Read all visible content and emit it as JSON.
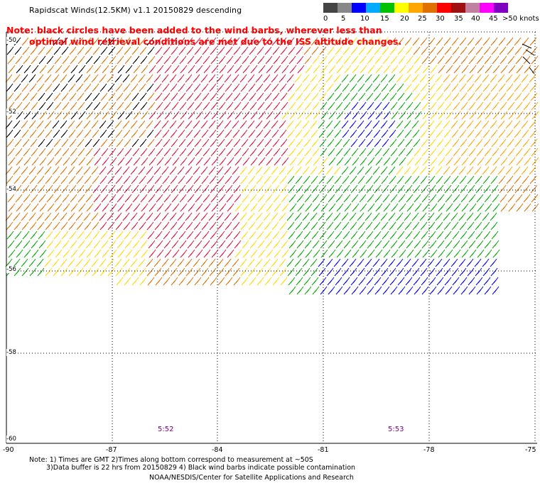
{
  "header": {
    "title": "Rapidscat Winds(12.5KM) v1.1 20150829 descending"
  },
  "note": {
    "line1": "Note: black circles have been added to the wind barbs, wherever less than",
    "line2": "optimal wind retrieval conditions are met due to the ISS altitude changes."
  },
  "legend": {
    "colors": [
      "#444444",
      "#888888",
      "#0000ff",
      "#00aaff",
      "#00c000",
      "#ffff00",
      "#ffa500",
      "#e07000",
      "#ff0000",
      "#a01010",
      "#c080a0",
      "#ff00ff",
      "#8000c0"
    ],
    "labels": [
      "0",
      "5",
      "10",
      "15",
      "20",
      "25",
      "30",
      "35",
      "40",
      "45",
      ">50 knots"
    ]
  },
  "axes": {
    "lat_labels": [
      "-50",
      "-52",
      "-54",
      "-56",
      "-58",
      "-60"
    ],
    "lon_labels": [
      "-90",
      "-87",
      "-84",
      "-81",
      "-78",
      "-75"
    ]
  },
  "times": {
    "left": "5:52",
    "right": "5:53"
  },
  "footer": {
    "line1": "Note: 1) Times are GMT 2)Times along bottom correspond to measurement at ~50S",
    "line2": "3)Data buffer is 22 hrs from 20150829 4) Black wind barbs indicate possible contamination",
    "line3": "NOAA/NESDIS/Center for Satellite Applications and Research"
  }
}
